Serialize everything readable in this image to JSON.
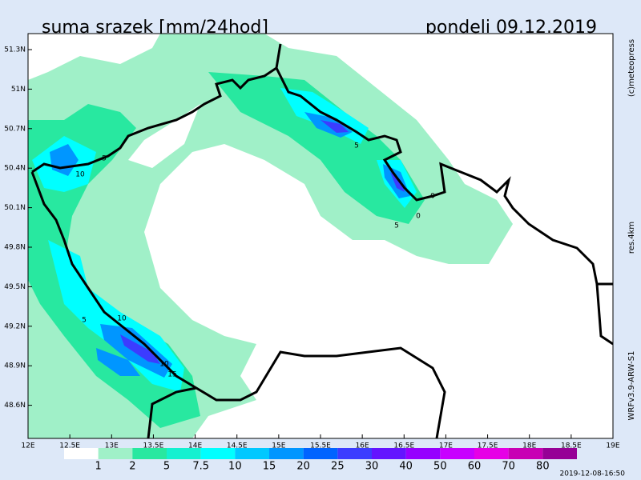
{
  "header": {
    "title": "suma srazek [mm/24hod]",
    "date": "pondeli 09.12.2019"
  },
  "side_labels": {
    "copyright": "(c)meteopress",
    "resolution": "res.4km",
    "model": "WRFv3.9-ARW-S1"
  },
  "footer": {
    "timestamp": "2019-12-08-16:50"
  },
  "lat_labels": [
    "51.3N",
    "51N",
    "50.7N",
    "50.4N",
    "50.1N",
    "49.8N",
    "49.5N",
    "49.2N",
    "48.9N",
    "48.6N"
  ],
  "lon_labels": [
    "12E",
    "12.5E",
    "13E",
    "13.5E",
    "14E",
    "14.5E",
    "15E",
    "15.5E",
    "16E",
    "16.5E",
    "17E",
    "17.5E",
    "18E",
    "18.5E",
    "19E"
  ],
  "contour_labels": [
    "5",
    "10",
    "5",
    "10",
    "10",
    "15",
    "5",
    "5",
    "0",
    "0"
  ],
  "legend": {
    "levels": [
      1,
      2,
      5,
      7.5,
      10,
      15,
      20,
      25,
      30,
      40,
      50,
      60,
      70,
      80
    ],
    "colors": [
      "#ffffff",
      "#a0f0c8",
      "#28e8a0",
      "#14f0d0",
      "#00ffff",
      "#00c8ff",
      "#0096ff",
      "#0064ff",
      "#3c3cff",
      "#6414ff",
      "#9600ff",
      "#c800ff",
      "#e600e6",
      "#c800b4",
      "#960096"
    ]
  }
}
